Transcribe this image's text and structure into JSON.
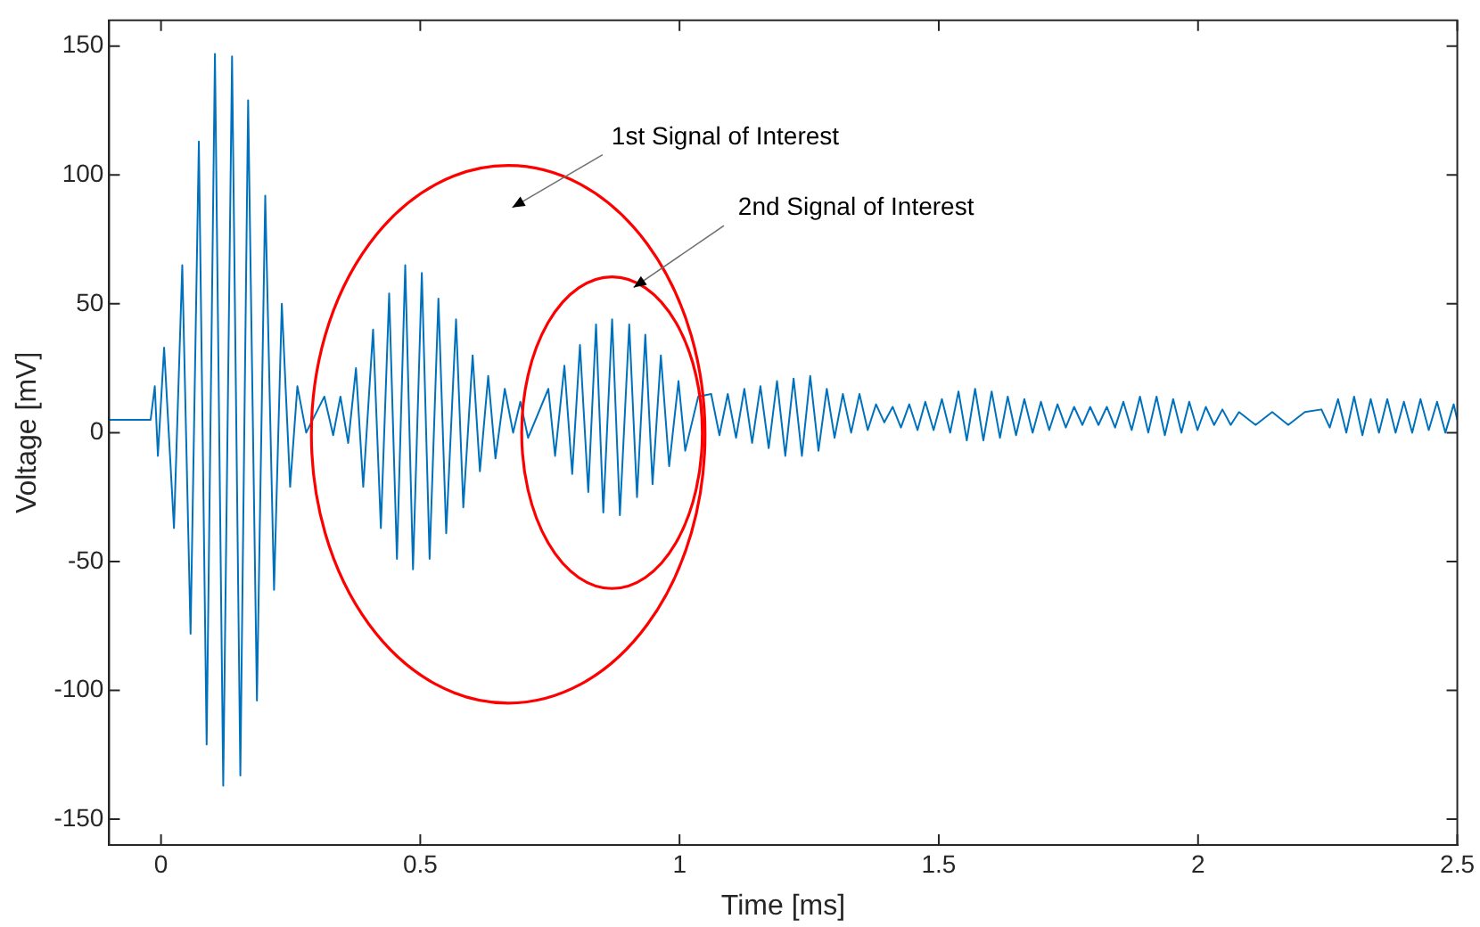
{
  "chart_data": {
    "type": "line",
    "xlabel": "Time [ms]",
    "ylabel": "Voltage [mV]",
    "xlim": [
      -0.1,
      2.5
    ],
    "xticks": [
      0,
      0.5,
      1,
      1.5,
      2,
      2.5
    ],
    "ylim": [
      -160,
      160
    ],
    "yticks": [
      -150,
      -100,
      -50,
      0,
      50,
      100,
      150
    ],
    "grid": false,
    "marker": "none",
    "line_style": "solid",
    "annotations": [
      "1st Signal of Interest",
      "2nd Signal of Interest"
    ],
    "series": [
      {
        "color": "#0072bd",
        "x": [
          -0.1,
          -0.02,
          -0.012,
          -0.006,
          0.006,
          0.025,
          0.041,
          0.057,
          0.073,
          0.088,
          0.104,
          0.12,
          0.137,
          0.153,
          0.168,
          0.185,
          0.201,
          0.218,
          0.233,
          0.249,
          0.263,
          0.28,
          0.315,
          0.332,
          0.346,
          0.361,
          0.376,
          0.39,
          0.409,
          0.424,
          0.44,
          0.455,
          0.471,
          0.486,
          0.503,
          0.518,
          0.535,
          0.55,
          0.569,
          0.583,
          0.601,
          0.615,
          0.631,
          0.645,
          0.663,
          0.679,
          0.693,
          0.708,
          0.747,
          0.76,
          0.778,
          0.793,
          0.808,
          0.824,
          0.839,
          0.853,
          0.87,
          0.885,
          0.903,
          0.918,
          0.934,
          0.948,
          0.964,
          0.98,
          0.998,
          1.011,
          1.036,
          1.061,
          1.077,
          1.093,
          1.109,
          1.125,
          1.14,
          1.156,
          1.172,
          1.188,
          1.204,
          1.22,
          1.236,
          1.252,
          1.268,
          1.284,
          1.299,
          1.315,
          1.331,
          1.347,
          1.363,
          1.379,
          1.395,
          1.411,
          1.427,
          1.443,
          1.459,
          1.474,
          1.49,
          1.506,
          1.522,
          1.538,
          1.554,
          1.57,
          1.586,
          1.602,
          1.618,
          1.633,
          1.649,
          1.665,
          1.681,
          1.697,
          1.713,
          1.729,
          1.745,
          1.761,
          1.777,
          1.792,
          1.808,
          1.824,
          1.84,
          1.856,
          1.872,
          1.888,
          1.904,
          1.92,
          1.936,
          1.952,
          1.968,
          1.983,
          1.999,
          2.015,
          2.031,
          2.047,
          2.063,
          2.079,
          2.111,
          2.143,
          2.174,
          2.206,
          2.238,
          2.254,
          2.27,
          2.286,
          2.301,
          2.317,
          2.333,
          2.349,
          2.365,
          2.381,
          2.397,
          2.413,
          2.429,
          2.445,
          2.461,
          2.477,
          2.493,
          2.5
        ],
        "values": [
          5,
          5,
          18,
          -9,
          33,
          -37,
          65,
          -78,
          113,
          -121,
          147,
          -137,
          146,
          -133,
          129,
          -104,
          92,
          -61,
          50,
          -21,
          18,
          0,
          14,
          -1,
          14,
          -4,
          25,
          -21,
          40,
          -37,
          54,
          -49,
          65,
          -53,
          62,
          -49,
          52,
          -39,
          44,
          -29,
          30,
          -15,
          22,
          -10,
          17,
          0,
          12,
          -2,
          17,
          -9,
          26,
          -16,
          34,
          -23,
          42,
          -31,
          44,
          -32,
          42,
          -25,
          38,
          -20,
          30,
          -13,
          20,
          -7,
          14,
          15,
          -1,
          15,
          -2,
          17,
          -4,
          18,
          -6,
          20,
          -9,
          21,
          -9,
          22,
          -7,
          17,
          -2,
          15,
          0,
          15,
          1,
          11,
          4,
          10,
          2,
          11,
          1,
          12,
          1,
          13,
          0,
          16,
          -3,
          17,
          -3,
          16,
          -2,
          14,
          -1,
          13,
          0,
          12,
          1,
          11,
          2,
          10,
          3,
          10,
          3,
          10,
          2,
          12,
          1,
          14,
          0,
          14,
          -1,
          13,
          0,
          12,
          1,
          10,
          3,
          9,
          3,
          8,
          3,
          8,
          3,
          8,
          9,
          2,
          13,
          0,
          14,
          -1,
          13,
          0,
          13,
          0,
          12,
          0,
          13,
          1,
          12,
          0,
          11,
          5
        ]
      }
    ]
  }
}
